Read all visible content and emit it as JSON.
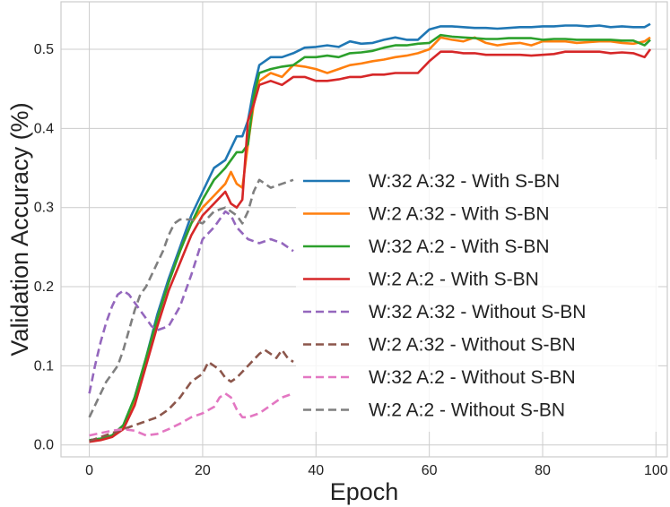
{
  "chart_data": {
    "type": "line",
    "title": "",
    "xlabel": "Epoch",
    "ylabel": "Validation Accuracy (%)",
    "xlim": [
      -5,
      102
    ],
    "ylim": [
      -0.015,
      0.56
    ],
    "xticks": [
      0,
      20,
      40,
      60,
      80,
      100
    ],
    "yticks": [
      0.0,
      0.1,
      0.2,
      0.3,
      0.4,
      0.5
    ],
    "ytick_labels": [
      "0.0",
      "0.1",
      "0.2",
      "0.3",
      "0.4",
      "0.5"
    ],
    "grid": true,
    "legend_position": "center-right",
    "series": [
      {
        "name": "W:32 A:32 - With S-BN",
        "color": "#1f77b4",
        "dash": "solid",
        "x": [
          0,
          2,
          4,
          6,
          8,
          10,
          12,
          14,
          16,
          18,
          20,
          22,
          24,
          26,
          27,
          28,
          29,
          30,
          32,
          34,
          36,
          38,
          40,
          42,
          44,
          46,
          48,
          50,
          52,
          54,
          56,
          58,
          60,
          62,
          64,
          66,
          68,
          70,
          72,
          74,
          76,
          78,
          80,
          82,
          84,
          86,
          88,
          90,
          92,
          94,
          96,
          98,
          99
        ],
        "y": [
          0.006,
          0.008,
          0.012,
          0.025,
          0.06,
          0.11,
          0.165,
          0.21,
          0.25,
          0.29,
          0.32,
          0.35,
          0.36,
          0.39,
          0.39,
          0.41,
          0.45,
          0.48,
          0.49,
          0.49,
          0.495,
          0.502,
          0.503,
          0.505,
          0.503,
          0.51,
          0.507,
          0.508,
          0.512,
          0.515,
          0.512,
          0.512,
          0.525,
          0.529,
          0.529,
          0.528,
          0.527,
          0.527,
          0.526,
          0.527,
          0.528,
          0.528,
          0.529,
          0.529,
          0.53,
          0.53,
          0.529,
          0.53,
          0.528,
          0.529,
          0.528,
          0.528,
          0.532
        ]
      },
      {
        "name": "W:2 A:32 - With S-BN",
        "color": "#ff7f0e",
        "dash": "solid",
        "x": [
          0,
          2,
          4,
          6,
          8,
          10,
          12,
          14,
          16,
          18,
          20,
          22,
          24,
          25,
          26,
          27,
          28,
          29,
          30,
          32,
          34,
          36,
          38,
          40,
          42,
          44,
          46,
          48,
          50,
          52,
          54,
          56,
          58,
          60,
          62,
          64,
          66,
          68,
          70,
          72,
          74,
          76,
          78,
          80,
          82,
          84,
          86,
          88,
          90,
          92,
          94,
          96,
          98,
          99
        ],
        "y": [
          0.005,
          0.007,
          0.011,
          0.022,
          0.055,
          0.105,
          0.16,
          0.205,
          0.245,
          0.28,
          0.3,
          0.315,
          0.33,
          0.345,
          0.33,
          0.325,
          0.38,
          0.43,
          0.46,
          0.47,
          0.465,
          0.48,
          0.478,
          0.475,
          0.47,
          0.475,
          0.48,
          0.482,
          0.485,
          0.487,
          0.49,
          0.492,
          0.495,
          0.5,
          0.515,
          0.512,
          0.51,
          0.515,
          0.508,
          0.505,
          0.507,
          0.508,
          0.505,
          0.51,
          0.51,
          0.51,
          0.508,
          0.509,
          0.51,
          0.51,
          0.508,
          0.507,
          0.51,
          0.515
        ]
      },
      {
        "name": "W:32 A:2 - With S-BN",
        "color": "#2ca02c",
        "dash": "solid",
        "x": [
          0,
          2,
          4,
          6,
          8,
          10,
          12,
          14,
          16,
          18,
          20,
          22,
          24,
          26,
          27,
          28,
          29,
          30,
          32,
          34,
          36,
          38,
          40,
          42,
          44,
          46,
          48,
          50,
          52,
          54,
          56,
          58,
          60,
          62,
          64,
          66,
          68,
          70,
          72,
          74,
          76,
          78,
          80,
          82,
          84,
          86,
          88,
          90,
          92,
          94,
          96,
          98,
          99
        ],
        "y": [
          0.006,
          0.008,
          0.012,
          0.025,
          0.06,
          0.11,
          0.16,
          0.205,
          0.245,
          0.28,
          0.31,
          0.335,
          0.35,
          0.37,
          0.37,
          0.38,
          0.44,
          0.47,
          0.475,
          0.478,
          0.48,
          0.49,
          0.49,
          0.492,
          0.49,
          0.495,
          0.496,
          0.498,
          0.502,
          0.505,
          0.505,
          0.507,
          0.508,
          0.518,
          0.516,
          0.515,
          0.514,
          0.513,
          0.513,
          0.514,
          0.514,
          0.514,
          0.512,
          0.513,
          0.513,
          0.512,
          0.512,
          0.512,
          0.512,
          0.511,
          0.511,
          0.505,
          0.512
        ]
      },
      {
        "name": "W:2 A:2 - With S-BN",
        "color": "#d62728",
        "dash": "solid",
        "x": [
          0,
          2,
          4,
          6,
          8,
          10,
          12,
          14,
          16,
          18,
          20,
          22,
          24,
          25,
          26,
          27,
          28,
          29,
          30,
          32,
          34,
          36,
          38,
          40,
          42,
          44,
          46,
          48,
          50,
          52,
          54,
          56,
          58,
          60,
          62,
          64,
          66,
          68,
          70,
          72,
          74,
          76,
          78,
          80,
          82,
          84,
          86,
          88,
          90,
          92,
          94,
          96,
          98,
          99
        ],
        "y": [
          0.004,
          0.006,
          0.01,
          0.02,
          0.05,
          0.1,
          0.15,
          0.195,
          0.23,
          0.265,
          0.29,
          0.305,
          0.32,
          0.305,
          0.3,
          0.31,
          0.41,
          0.43,
          0.455,
          0.46,
          0.455,
          0.465,
          0.465,
          0.46,
          0.46,
          0.462,
          0.465,
          0.465,
          0.468,
          0.468,
          0.47,
          0.47,
          0.47,
          0.485,
          0.497,
          0.497,
          0.495,
          0.495,
          0.493,
          0.493,
          0.493,
          0.493,
          0.492,
          0.493,
          0.494,
          0.497,
          0.497,
          0.497,
          0.497,
          0.495,
          0.496,
          0.495,
          0.49,
          0.5
        ]
      },
      {
        "name": "W:32 A:32 - Without S-BN",
        "color": "#9467bd",
        "dash": "dashed",
        "x": [
          0,
          1,
          2,
          3,
          4,
          5,
          6,
          7,
          8,
          9,
          10,
          11,
          12,
          14,
          16,
          18,
          20,
          22,
          24,
          25,
          26,
          28,
          30,
          32,
          34,
          36
        ],
        "y": [
          0.065,
          0.1,
          0.13,
          0.155,
          0.175,
          0.19,
          0.195,
          0.19,
          0.18,
          0.17,
          0.16,
          0.15,
          0.145,
          0.15,
          0.175,
          0.215,
          0.26,
          0.275,
          0.295,
          0.29,
          0.275,
          0.26,
          0.255,
          0.26,
          0.255,
          0.245
        ]
      },
      {
        "name": "W:2 A:32 - Without S-BN",
        "color": "#8c564b",
        "dash": "dashed",
        "x": [
          0,
          2,
          4,
          6,
          8,
          10,
          12,
          14,
          16,
          18,
          20,
          21,
          22,
          23,
          24,
          25,
          26,
          28,
          30,
          31,
          32,
          33,
          34,
          35,
          36
        ],
        "y": [
          0.005,
          0.01,
          0.015,
          0.02,
          0.025,
          0.03,
          0.035,
          0.045,
          0.06,
          0.08,
          0.09,
          0.105,
          0.1,
          0.095,
          0.085,
          0.08,
          0.085,
          0.1,
          0.115,
          0.12,
          0.115,
          0.11,
          0.12,
          0.11,
          0.105
        ]
      },
      {
        "name": "W:32 A:2 - Without S-BN",
        "color": "#e377c2",
        "dash": "dashed",
        "x": [
          0,
          2,
          4,
          6,
          8,
          10,
          12,
          14,
          16,
          18,
          20,
          22,
          23,
          24,
          25,
          26,
          27,
          28,
          30,
          32,
          34,
          36
        ],
        "y": [
          0.012,
          0.015,
          0.018,
          0.02,
          0.018,
          0.012,
          0.014,
          0.02,
          0.027,
          0.035,
          0.04,
          0.048,
          0.06,
          0.065,
          0.06,
          0.045,
          0.035,
          0.035,
          0.04,
          0.05,
          0.06,
          0.065
        ]
      },
      {
        "name": "W:2 A:2 - Without S-BN",
        "color": "#7f7f7f",
        "dash": "dashed",
        "x": [
          0,
          1,
          2,
          3,
          4,
          5,
          6,
          7,
          8,
          9,
          10,
          11,
          12,
          13,
          14,
          15,
          16,
          18,
          20,
          22,
          24,
          26,
          27,
          28,
          29,
          30,
          32,
          34,
          36
        ],
        "y": [
          0.035,
          0.05,
          0.065,
          0.08,
          0.09,
          0.1,
          0.12,
          0.145,
          0.17,
          0.19,
          0.2,
          0.215,
          0.23,
          0.245,
          0.265,
          0.28,
          0.285,
          0.285,
          0.28,
          0.295,
          0.3,
          0.29,
          0.28,
          0.295,
          0.32,
          0.335,
          0.325,
          0.33,
          0.335
        ]
      }
    ]
  }
}
